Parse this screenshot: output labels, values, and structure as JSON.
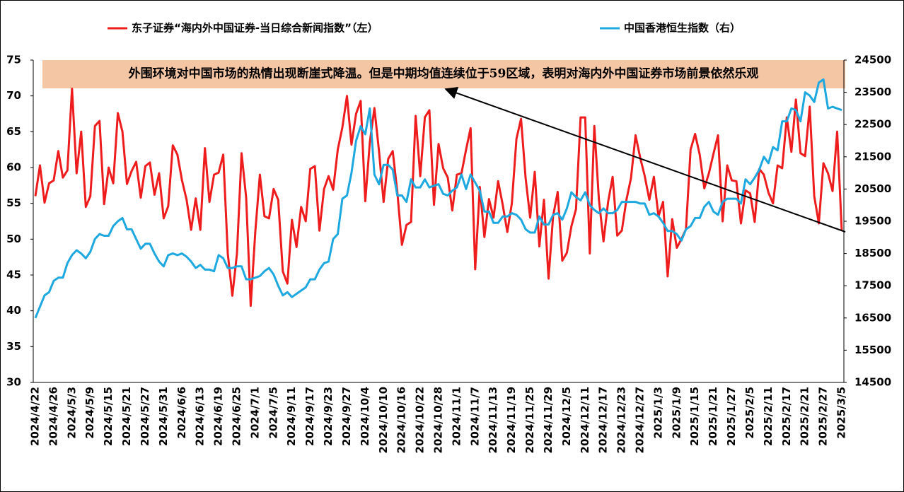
{
  "chart_data": {
    "type": "line",
    "annotation": "外围环境对中国市场的热情出现断崖式降温。但是中期均值连续位于59区域，表明对海内外中国证券市场前景依然乐观",
    "categories": [
      "2024/4/22",
      null,
      null,
      null,
      "2024/4/26",
      null,
      null,
      null,
      "2024/5/3",
      null,
      null,
      null,
      "2024/5/9",
      null,
      null,
      null,
      "2024/5/15",
      null,
      null,
      null,
      "2024/5/21",
      null,
      null,
      null,
      "2024/5/27",
      null,
      null,
      null,
      "2024/5/31",
      null,
      null,
      null,
      "2024/6/6",
      null,
      null,
      null,
      "2024/6/13",
      null,
      null,
      null,
      "2024/6/19",
      null,
      null,
      null,
      "2024/6/25",
      null,
      null,
      null,
      "2024/7/1",
      null,
      null,
      null,
      "2024/7/5",
      null,
      null,
      null,
      "2024/9/11",
      null,
      null,
      null,
      "2024/9/17",
      null,
      null,
      null,
      "2024/9/23",
      null,
      null,
      null,
      "2024/9/27",
      null,
      null,
      null,
      "2024/10/4",
      null,
      null,
      null,
      "2024/10/10",
      null,
      null,
      null,
      "2024/10/16",
      null,
      null,
      null,
      "2024/10/22",
      null,
      null,
      null,
      "2024/10/28",
      null,
      null,
      null,
      "2024/11/1",
      null,
      null,
      null,
      "2024/11/7",
      null,
      null,
      null,
      "2024/11/13",
      null,
      null,
      null,
      "2024/11/19",
      null,
      null,
      null,
      "2024/11/25",
      null,
      null,
      null,
      "2024/11/29",
      null,
      null,
      null,
      "2024/12/5",
      null,
      null,
      null,
      "2024/12/11",
      null,
      null,
      null,
      "2024/12/17",
      null,
      null,
      null,
      "2024/12/23",
      null,
      null,
      null,
      "2024/12/27",
      null,
      null,
      null,
      "2025/1/3",
      null,
      null,
      null,
      "2025/1/9",
      null,
      null,
      null,
      "2025/1/15",
      null,
      null,
      null,
      "2025/1/21",
      null,
      null,
      null,
      "2025/1/27",
      null,
      null,
      null,
      "2025/2/5",
      null,
      null,
      null,
      "2025/2/11",
      null,
      null,
      null,
      "2025/2/17",
      null,
      null,
      null,
      "2025/2/21",
      null,
      null,
      null,
      "2025/2/27",
      null,
      null,
      null,
      "2025/3/5"
    ],
    "series": [
      {
        "name": "东子证券“海内外中国证券-当日综合新闻指数”（左）",
        "color": "#ee1c1c",
        "axis": "y",
        "values": [
          56,
          60.3,
          55.1,
          57.8,
          58.2,
          62.3,
          58.6,
          59.6,
          71,
          59.2,
          65,
          54.5,
          56,
          65.8,
          66.5,
          54.9,
          60,
          57.8,
          67.6,
          65,
          57.7,
          59.5,
          60.8,
          55.8,
          60.2,
          60.7,
          56.2,
          59.2,
          52.9,
          54.6,
          63.1,
          61.8,
          58.2,
          55.5,
          51.3,
          55.7,
          51.3,
          62.7,
          55.2,
          59,
          59.3,
          61.8,
          48,
          42.1,
          48,
          62,
          55.8,
          40.7,
          51,
          59,
          53.2,
          52.9,
          57,
          55.5,
          45.5,
          43.8,
          52.7,
          48.9,
          54.5,
          52.5,
          59.8,
          60.2,
          51.2,
          57,
          58.8,
          56.9,
          62.5,
          65.6,
          70,
          63.2,
          67.5,
          69.3,
          55.3,
          63.5,
          68.3,
          62.3,
          55.2,
          61.2,
          62.3,
          56.6,
          49.2,
          52,
          52.4,
          67.2,
          58.8,
          67,
          68,
          54.8,
          63.3,
          59.9,
          58.6,
          54,
          59,
          59.2,
          62.5,
          65.5,
          45.8,
          57.3,
          50.3,
          55.6,
          53,
          58.1,
          54.8,
          51,
          55,
          64,
          66.8,
          58.5,
          53,
          59.4,
          49,
          55.5,
          44.5,
          53.2,
          56.6,
          47,
          48.1,
          51.8,
          54.2,
          67,
          67,
          48,
          65.8,
          55.5,
          49.7,
          55.2,
          58.7,
          50.5,
          51.2,
          55.5,
          58.5,
          64.5,
          61.4,
          58.8,
          55.5,
          58.7,
          53.2,
          55.2,
          44.8,
          52.8,
          48.8,
          50,
          51.4,
          62.5,
          64.7,
          61.8,
          57.1,
          59.2,
          61.9,
          64.5,
          52.5,
          60.3,
          58.2,
          58.1,
          52.2,
          56.8,
          56.4,
          52.4,
          59.8,
          59,
          56.5,
          55,
          60.3,
          59.9,
          67,
          62.2,
          69.5,
          62,
          61.6,
          68.5,
          56,
          52.2,
          60.6,
          59.2,
          56.7,
          65,
          51.2
        ]
      },
      {
        "name": "中国香港恒生指数（右）",
        "color": "#1ea8e0",
        "axis": "y2",
        "values": [
          16500,
          16850,
          17200,
          17300,
          17650,
          17750,
          17750,
          18200,
          18450,
          18600,
          18500,
          18350,
          18550,
          18950,
          19100,
          19050,
          19050,
          19350,
          19500,
          19600,
          19250,
          19250,
          18950,
          18650,
          18800,
          18800,
          18500,
          18250,
          18100,
          18450,
          18500,
          18450,
          18500,
          18400,
          18250,
          18050,
          18150,
          18000,
          18000,
          17950,
          18450,
          18350,
          18050,
          18050,
          18100,
          18100,
          17700,
          17700,
          17750,
          17800,
          17950,
          18050,
          17850,
          17500,
          17200,
          17300,
          17150,
          17250,
          17350,
          17450,
          17700,
          17700,
          18000,
          18200,
          18250,
          18950,
          19100,
          20200,
          20300,
          21000,
          22000,
          22450,
          22200,
          23000,
          20950,
          20650,
          21250,
          21250,
          21100,
          20300,
          20300,
          20100,
          20800,
          20550,
          20550,
          20800,
          20550,
          20600,
          20650,
          20350,
          20300,
          20450,
          20550,
          20950,
          20500,
          20950,
          20700,
          20450,
          19800,
          19800,
          19450,
          19450,
          19650,
          19650,
          19750,
          19700,
          19550,
          19250,
          19150,
          19150,
          19650,
          19400,
          19400,
          19700,
          19750,
          19550,
          19900,
          20400,
          20250,
          20150,
          20400,
          20000,
          19850,
          19750,
          19900,
          19750,
          19750,
          19850,
          20100,
          20100,
          20100,
          20100,
          20050,
          20050,
          19700,
          19750,
          19650,
          19450,
          19200,
          19200,
          19100,
          18900,
          19250,
          19350,
          19600,
          19600,
          19950,
          20100,
          19800,
          19700,
          20100,
          20200,
          20200,
          20200,
          20050,
          20800,
          20650,
          20850,
          21100,
          21500,
          21300,
          21800,
          21700,
          22600,
          22600,
          23000,
          22950,
          22600,
          23500,
          23400,
          23200,
          23800,
          23900,
          23000,
          23050,
          23000,
          22950
        ]
      }
    ],
    "ylim": [
      30,
      75
    ],
    "yticks": [
      30,
      35,
      40,
      45,
      50,
      55,
      60,
      65,
      70,
      75
    ],
    "y2lim": [
      14500,
      24500
    ],
    "y2ticks": [
      14500,
      15500,
      16500,
      17500,
      18500,
      19500,
      20500,
      21500,
      22500,
      23500,
      24500
    ],
    "grid": false,
    "legend": "top"
  }
}
